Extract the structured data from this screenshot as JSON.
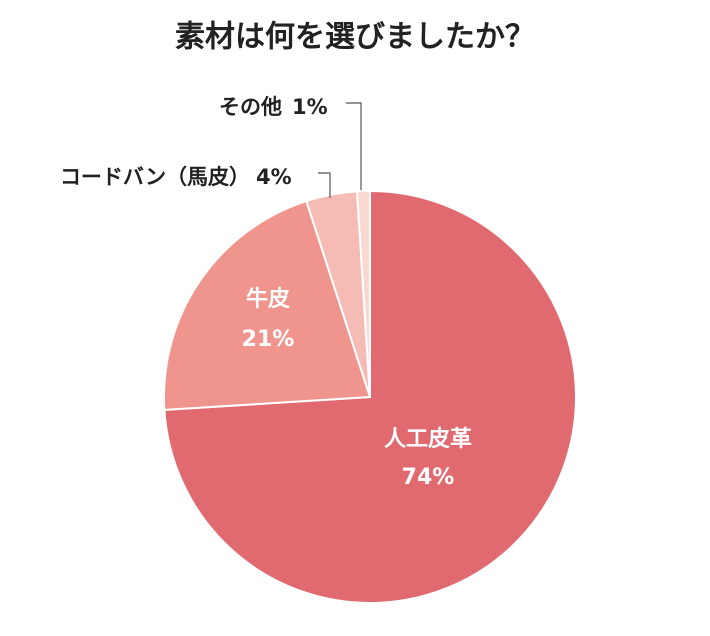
{
  "chart_data": {
    "type": "pie",
    "title": "素材は何を選びましたか？",
    "categories": [
      "人工皮革",
      "牛皮",
      "コードバン（馬皮）",
      "その他"
    ],
    "values": [
      74,
      21,
      4,
      1
    ],
    "value_labels": [
      "74%",
      "21%",
      "4%",
      "1%"
    ],
    "colors": [
      "#e06a70",
      "#ef958d",
      "#f6bbb4",
      "#fad8d2"
    ]
  }
}
